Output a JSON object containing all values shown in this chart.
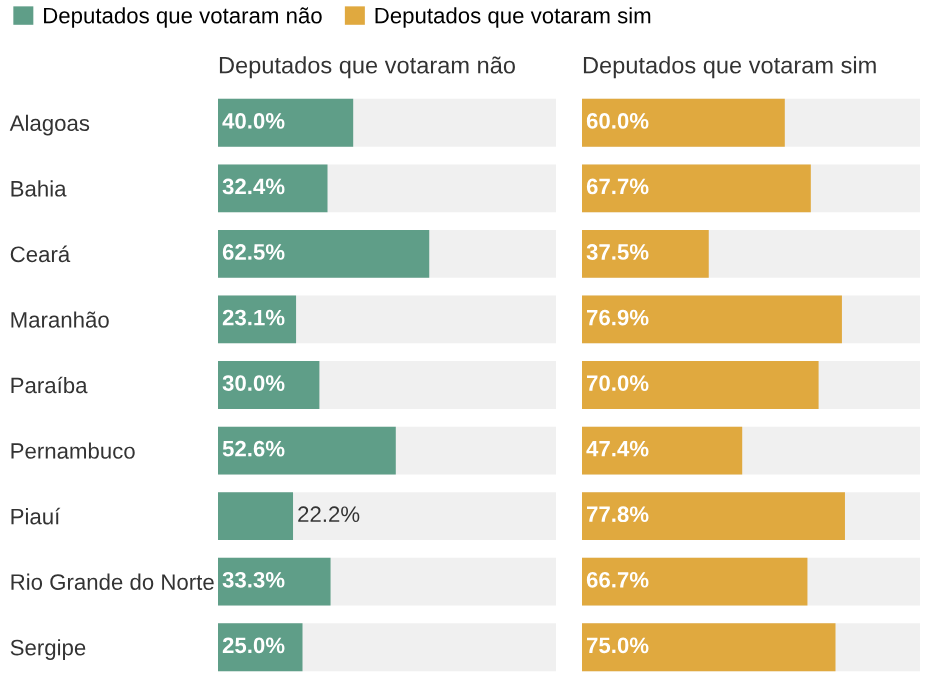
{
  "chart_data": [
    {
      "type": "bar",
      "orientation": "horizontal",
      "title": "Deputados que votaram não",
      "categories": [
        "Alagoas",
        "Bahia",
        "Ceará",
        "Maranhão",
        "Paraíba",
        "Pernambuco",
        "Piauí",
        "Rio Grande do Norte",
        "Sergipe"
      ],
      "xlim": [
        0,
        100
      ],
      "tick_labels": "y",
      "legend": "top left",
      "data_labels": true,
      "series": [
        {
          "name": "Deputados que votaram não",
          "color": "#5f9e88",
          "values": [
            40.0,
            32.4,
            62.5,
            23.1,
            30.0,
            52.6,
            22.2,
            33.3,
            25.0
          ],
          "value_labels": [
            "40.0%",
            "32.4%",
            "62.5%",
            "23.1%",
            "30.0%",
            "52.6%",
            "22.2%",
            "33.3%",
            "25.0%"
          ]
        }
      ]
    },
    {
      "type": "bar",
      "orientation": "horizontal",
      "title": "Deputados que votaram sim",
      "categories": [
        null,
        null,
        null,
        null,
        null,
        null,
        null,
        null,
        null
      ],
      "xlim": [
        0,
        100
      ],
      "legend": "top left",
      "data_labels": true,
      "series": [
        {
          "name": "Deputados que votaram sim",
          "color": "#e0a93f",
          "values": [
            60.0,
            67.7,
            37.5,
            76.9,
            70.0,
            47.4,
            77.8,
            66.7,
            75.0
          ],
          "value_labels": [
            "60.0%",
            "67.7%",
            "37.5%",
            "76.9%",
            "70.0%",
            "47.4%",
            "77.8%",
            "66.7%",
            "75.0%"
          ]
        }
      ]
    }
  ]
}
